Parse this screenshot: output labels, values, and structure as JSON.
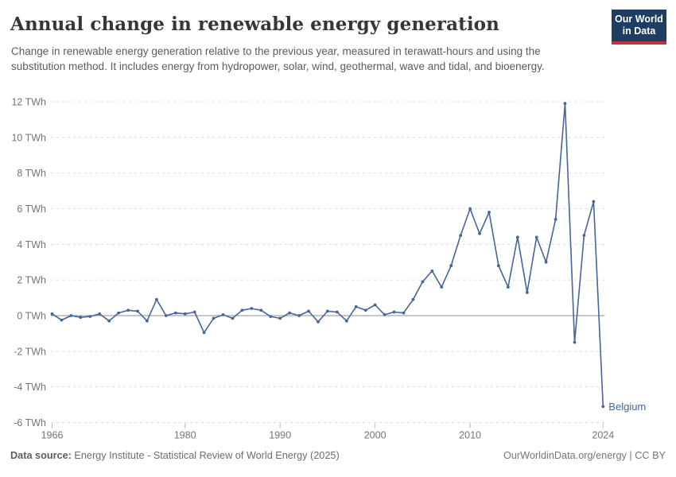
{
  "header": {
    "title": "Annual change in renewable energy generation",
    "subtitle": "Change in renewable energy generation relative to the previous year, measured in terawatt-hours and using the substitution method. It includes energy from hydropower, solar, wind, geothermal, wave and tidal, and bioenergy."
  },
  "logo": {
    "line1": "Our World",
    "line2": "in Data",
    "bg_color": "#1d3d63",
    "bar_color": "#c5303e"
  },
  "footer": {
    "source_label": "Data source:",
    "source_text": " Energy Institute - Statistical Review of World Energy (2025)",
    "right_text": "OurWorldinData.org/energy | CC BY"
  },
  "chart_data": {
    "type": "line",
    "title": "Annual change in renewable energy generation",
    "entity_label": "Belgium",
    "unit": "TWh",
    "ylabel": "",
    "xlabel": "",
    "ylim": [
      -6,
      12
    ],
    "ytick_step": 2,
    "xticks": [
      1966,
      1980,
      1990,
      2000,
      2010,
      2024
    ],
    "grid": "dashed horizontal, solid zero line",
    "legend_position": "end-of-line label",
    "line_color": "#45659f",
    "zero_line_color": "#8f8f8f",
    "grid_color": "#dcdcdc",
    "tick_label_color": "#757575",
    "years": [
      1966,
      1967,
      1968,
      1969,
      1970,
      1971,
      1972,
      1973,
      1974,
      1975,
      1976,
      1977,
      1978,
      1979,
      1980,
      1981,
      1982,
      1983,
      1984,
      1985,
      1986,
      1987,
      1988,
      1989,
      1990,
      1991,
      1992,
      1993,
      1994,
      1995,
      1996,
      1997,
      1998,
      1999,
      2000,
      2001,
      2002,
      2003,
      2004,
      2005,
      2006,
      2007,
      2008,
      2009,
      2010,
      2011,
      2012,
      2013,
      2014,
      2015,
      2016,
      2017,
      2018,
      2019,
      2020,
      2021,
      2022,
      2023,
      2024
    ],
    "values": [
      0.1,
      -0.25,
      0,
      -0.1,
      -0.05,
      0.1,
      -0.3,
      0.15,
      0.3,
      0.25,
      -0.3,
      0.9,
      0,
      0.15,
      0.1,
      0.2,
      -0.95,
      -0.15,
      0.05,
      -0.15,
      0.3,
      0.4,
      0.3,
      -0.05,
      -0.15,
      0.15,
      0,
      0.25,
      -0.35,
      0.25,
      0.2,
      -0.3,
      0.5,
      0.3,
      0.6,
      0.05,
      0.2,
      0.15,
      0.9,
      1.9,
      2.5,
      1.6,
      2.8,
      4.5,
      6,
      4.6,
      5.8,
      2.8,
      1.6,
      4.4,
      1.3,
      4.4,
      3,
      5.4,
      11.9,
      -1.5,
      4.5,
      6.4,
      -5.1
    ]
  }
}
